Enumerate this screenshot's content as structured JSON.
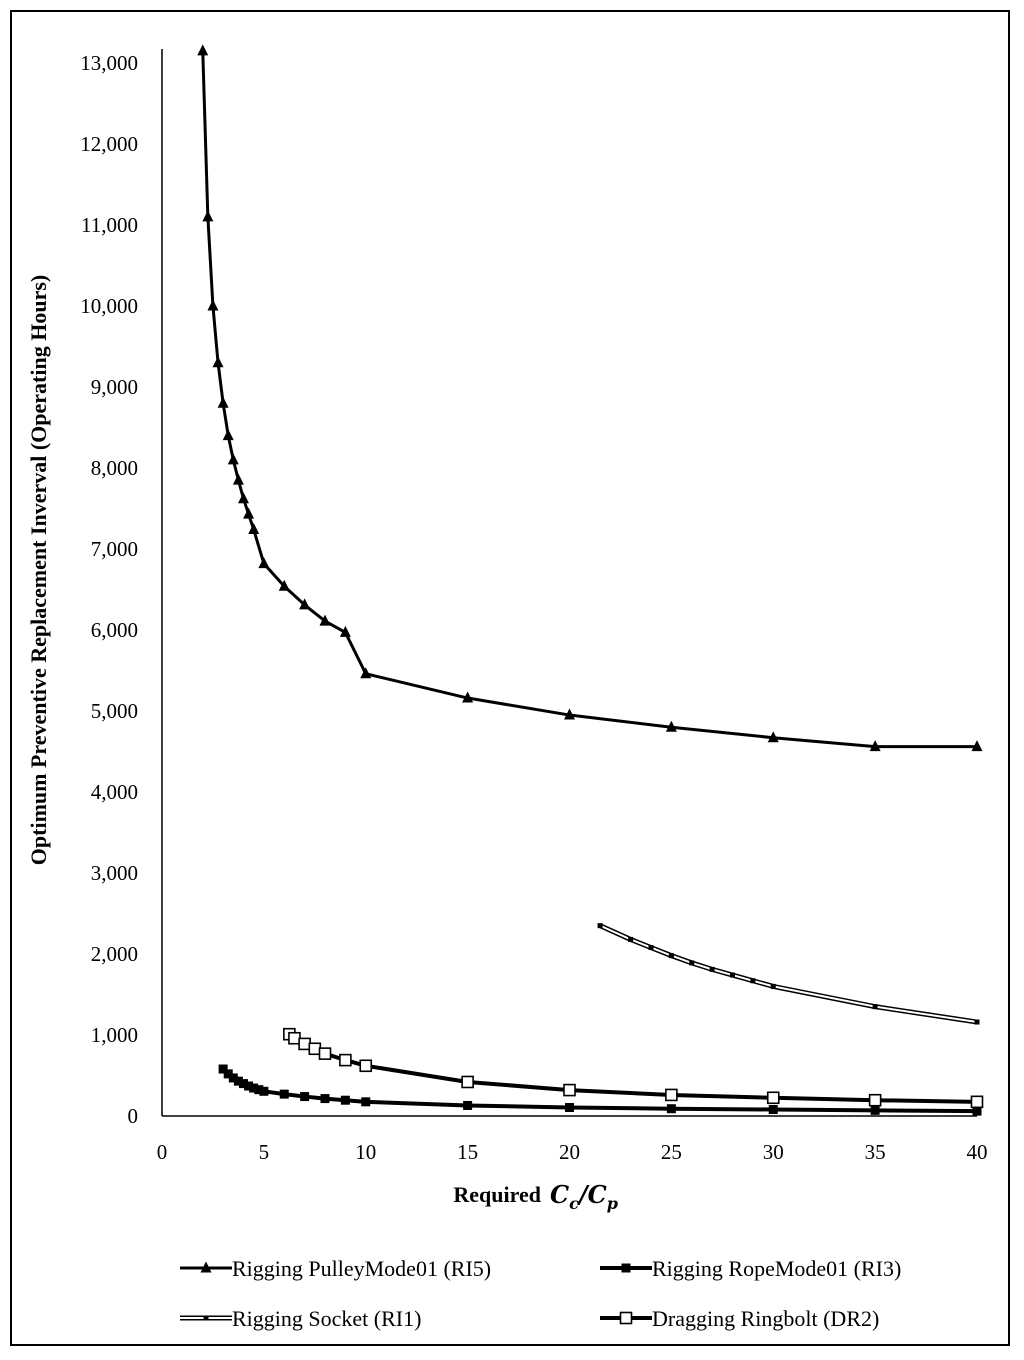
{
  "chart_data": {
    "type": "line",
    "title": "",
    "xlabel_prefix": "Required",
    "xlabel_math": "Cc/Cp",
    "ylabel": "Optimum Preventive Replacement Inverval (Operating Hours)",
    "xlim": [
      0,
      40
    ],
    "ylim": [
      0,
      13000
    ],
    "x_ticks": [
      0,
      5,
      10,
      15,
      20,
      25,
      30,
      35,
      40
    ],
    "y_ticks": [
      0,
      1000,
      2000,
      3000,
      4000,
      5000,
      6000,
      7000,
      8000,
      9000,
      10000,
      11000,
      12000,
      13000
    ],
    "y_tick_labels": [
      "0",
      "1,000",
      "2,000",
      "3,000",
      "4,000",
      "5,000",
      "6,000",
      "7,000",
      "8,000",
      "9,000",
      "10,000",
      "11,000",
      "12,000",
      "13,000"
    ],
    "grid": false,
    "legend_position": "bottom",
    "series": [
      {
        "name": "Rigging PulleyMode01 (RI5)",
        "marker": "triangle",
        "x": [
          2,
          2.25,
          2.5,
          2.75,
          3,
          3.25,
          3.5,
          3.75,
          4,
          4.25,
          4.5,
          5,
          6,
          7,
          8,
          9,
          10,
          15,
          20,
          25,
          30,
          35,
          40
        ],
        "y": [
          13150,
          11100,
          10000,
          9300,
          8800,
          8400,
          8100,
          7850,
          7620,
          7430,
          7240,
          6820,
          6540,
          6310,
          6110,
          5970,
          5460,
          5160,
          4950,
          4800,
          4670,
          4560,
          4560
        ]
      },
      {
        "name": "Rigging RopeMode01 (RI3)",
        "marker": "filled-square",
        "x": [
          3,
          3.25,
          3.5,
          3.75,
          4,
          4.25,
          4.5,
          4.75,
          5,
          6,
          7,
          8,
          9,
          10,
          15,
          20,
          25,
          30,
          35,
          40
        ],
        "y": [
          580,
          520,
          470,
          430,
          400,
          370,
          345,
          325,
          305,
          270,
          240,
          215,
          195,
          175,
          130,
          105,
          90,
          80,
          70,
          60
        ]
      },
      {
        "name": "Rigging Socket (RI1)",
        "marker": "small-square",
        "x": [
          21.5,
          23,
          24,
          25,
          26,
          27,
          28,
          29,
          30,
          35,
          40
        ],
        "y": [
          2350,
          2180,
          2080,
          1980,
          1890,
          1810,
          1740,
          1670,
          1600,
          1350,
          1160
        ]
      },
      {
        "name": "Dragging Ringbolt (DR2)",
        "marker": "open-square",
        "x": [
          6.25,
          6.5,
          7,
          7.5,
          8,
          9,
          10,
          15,
          20,
          25,
          30,
          35,
          40
        ],
        "y": [
          1010,
          960,
          890,
          830,
          770,
          690,
          620,
          420,
          320,
          260,
          225,
          195,
          175
        ]
      }
    ]
  }
}
